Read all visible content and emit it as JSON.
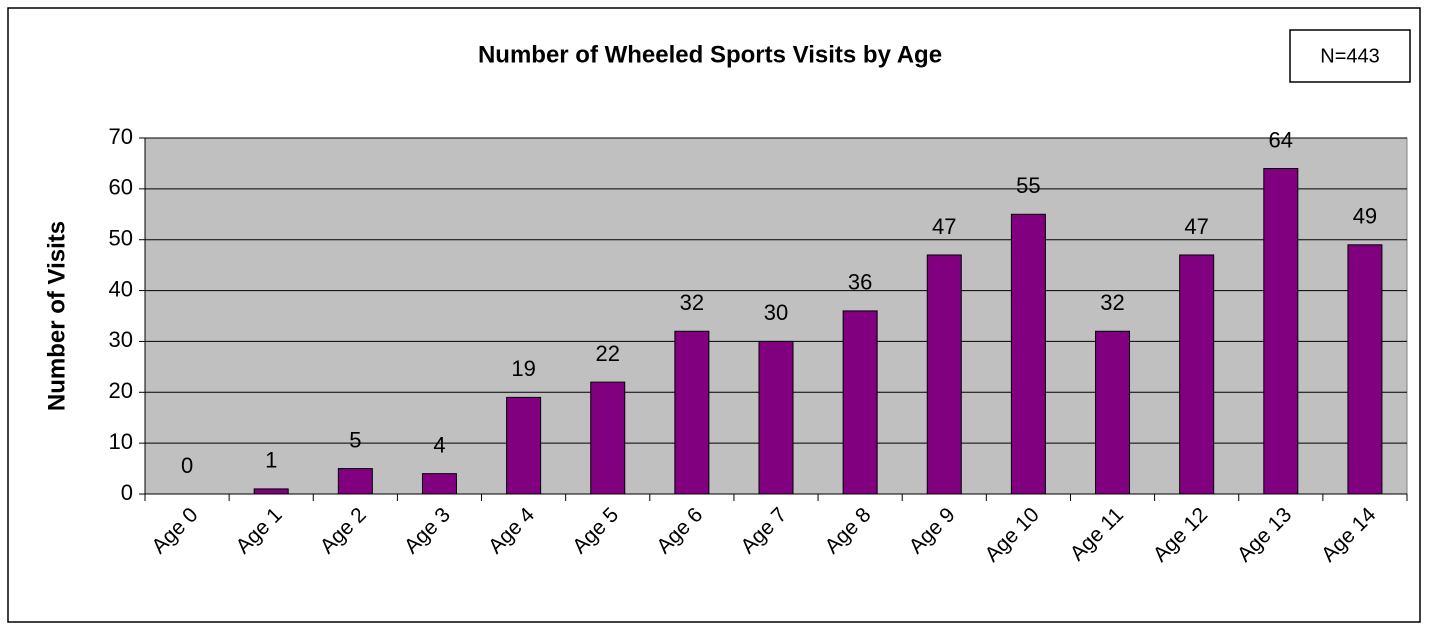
{
  "chart_data": {
    "type": "bar",
    "title": "Number of Wheeled Sports Visits by Age",
    "annotation": "N=443",
    "ylabel": "Number of Visits",
    "categories": [
      "Age 0",
      "Age 1",
      "Age 2",
      "Age 3",
      "Age 4",
      "Age 5",
      "Age 6",
      "Age 7",
      "Age 8",
      "Age 9",
      "Age 10",
      "Age 11",
      "Age 12",
      "Age 13",
      "Age 14"
    ],
    "values": [
      0,
      1,
      5,
      4,
      19,
      22,
      32,
      30,
      36,
      47,
      55,
      32,
      47,
      64,
      49
    ],
    "color": "#800080",
    "ylim": [
      0,
      70
    ],
    "yticks": [
      0,
      10,
      20,
      30,
      40,
      50,
      60,
      70
    ],
    "grid": true
  }
}
